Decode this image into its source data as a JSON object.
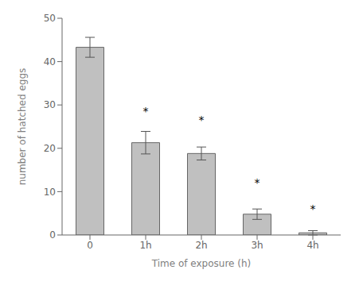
{
  "chart_data": {
    "type": "bar",
    "categories": [
      "0",
      "1h",
      "2h",
      "3h",
      "4h"
    ],
    "values": [
      43.3,
      21.3,
      18.8,
      4.8,
      0.5
    ],
    "errors": [
      2.3,
      2.6,
      1.5,
      1.2,
      0.5
    ],
    "color": "#c0c0c0",
    "xlabel": "Time of exposure (h)",
    "ylabel": "number of hatched eggs",
    "ylim": [
      0,
      50
    ],
    "yticks": [
      0,
      10,
      20,
      30,
      40,
      50
    ],
    "annotations": [
      {
        "text": "*",
        "x": "1h",
        "y": 28.5
      },
      {
        "text": "*",
        "x": "2h",
        "y": 26.5
      },
      {
        "text": "*",
        "x": "3h",
        "y": 12.0
      },
      {
        "text": "*",
        "x": "4h",
        "y": 6.0
      }
    ],
    "grid": false
  }
}
